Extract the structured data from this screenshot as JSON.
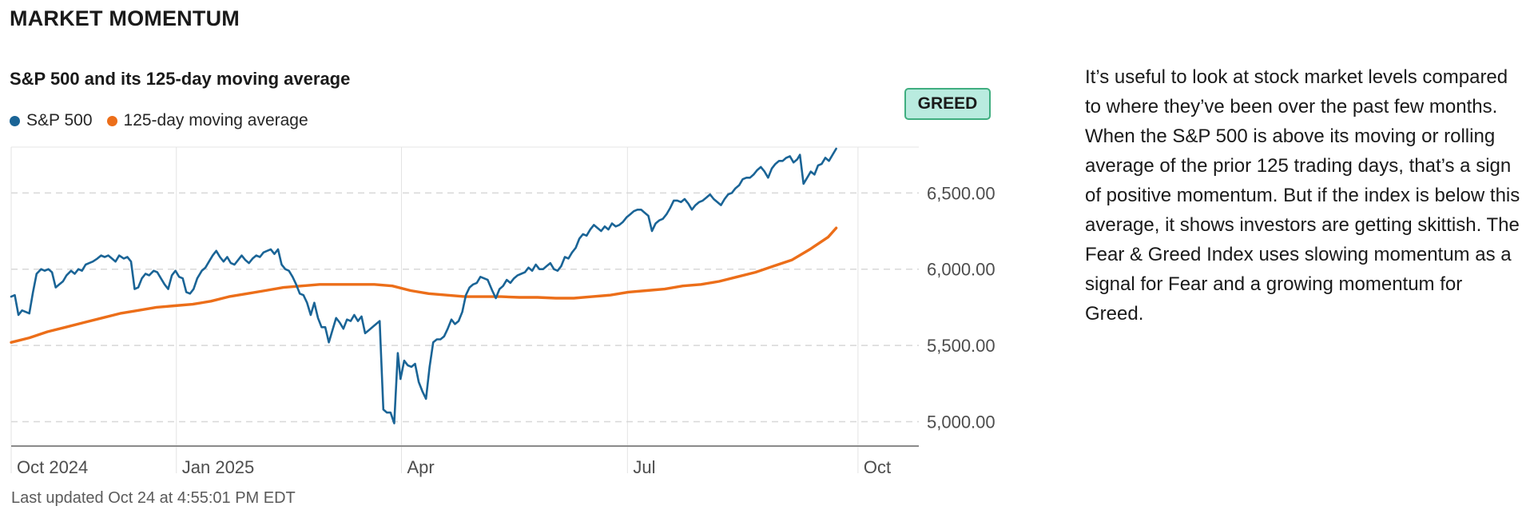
{
  "section_title": "MARKET MOMENTUM",
  "badge": "GREED",
  "description": "It’s useful to look at stock market levels compared to where they’ve been over the past few months. When the S&P 500 is above its moving or rolling average of the prior 125 trading days, that’s a sign of positive momentum. But if the index is below this average, it shows investors are getting skittish. The Fear & Greed Index uses slowing momentum as a signal for Fear and a growing momentum for Greed.",
  "footer": "Last updated Oct 24 at 4:55:01 PM EDT",
  "colors": {
    "sp500": "#1a6496",
    "ma125": "#ec6e19",
    "badge_bg": "#b9ebdf",
    "badge_border": "#3fae7f"
  },
  "chart_data": {
    "type": "line",
    "title": "S&P 500 and its 125-day moving average",
    "x_ticks": [
      {
        "label": "Oct 2024",
        "t": 0
      },
      {
        "label": "Jan 2025",
        "t": 0.182
      },
      {
        "label": "Apr",
        "t": 0.43
      },
      {
        "label": "Jul",
        "t": 0.679
      },
      {
        "label": "Oct",
        "t": 0.933
      }
    ],
    "y_ticks": [
      5000,
      5500,
      6000,
      6500
    ],
    "y_tick_labels": [
      "5,000.00",
      "5,500.00",
      "6,000.00",
      "6,500.00"
    ],
    "ylim": [
      4830,
      6790
    ],
    "grid": true,
    "legend": "top-left",
    "series": [
      {
        "name": "S&P 500",
        "points": [
          [
            0.0,
            5820
          ],
          [
            0.004,
            5830
          ],
          [
            0.008,
            5700
          ],
          [
            0.012,
            5730
          ],
          [
            0.016,
            5720
          ],
          [
            0.02,
            5710
          ],
          [
            0.024,
            5850
          ],
          [
            0.028,
            5970
          ],
          [
            0.033,
            6000
          ],
          [
            0.037,
            5990
          ],
          [
            0.041,
            6000
          ],
          [
            0.045,
            5980
          ],
          [
            0.049,
            5880
          ],
          [
            0.053,
            5900
          ],
          [
            0.057,
            5920
          ],
          [
            0.061,
            5960
          ],
          [
            0.066,
            5990
          ],
          [
            0.07,
            5970
          ],
          [
            0.074,
            6000
          ],
          [
            0.078,
            5990
          ],
          [
            0.082,
            6030
          ],
          [
            0.086,
            6040
          ],
          [
            0.09,
            6050
          ],
          [
            0.095,
            6070
          ],
          [
            0.099,
            6090
          ],
          [
            0.103,
            6080
          ],
          [
            0.107,
            6090
          ],
          [
            0.111,
            6070
          ],
          [
            0.115,
            6050
          ],
          [
            0.119,
            6090
          ],
          [
            0.124,
            6070
          ],
          [
            0.128,
            6080
          ],
          [
            0.132,
            6050
          ],
          [
            0.136,
            5870
          ],
          [
            0.14,
            5880
          ],
          [
            0.144,
            5940
          ],
          [
            0.148,
            5970
          ],
          [
            0.152,
            5960
          ],
          [
            0.157,
            5990
          ],
          [
            0.161,
            5980
          ],
          [
            0.165,
            5940
          ],
          [
            0.169,
            5900
          ],
          [
            0.173,
            5870
          ],
          [
            0.177,
            5960
          ],
          [
            0.181,
            5990
          ],
          [
            0.185,
            5950
          ],
          [
            0.189,
            5940
          ],
          [
            0.193,
            5850
          ],
          [
            0.197,
            5840
          ],
          [
            0.201,
            5870
          ],
          [
            0.205,
            5940
          ],
          [
            0.21,
            5990
          ],
          [
            0.214,
            6010
          ],
          [
            0.218,
            6050
          ],
          [
            0.222,
            6090
          ],
          [
            0.226,
            6120
          ],
          [
            0.23,
            6080
          ],
          [
            0.234,
            6050
          ],
          [
            0.238,
            6080
          ],
          [
            0.242,
            6040
          ],
          [
            0.246,
            6030
          ],
          [
            0.25,
            6060
          ],
          [
            0.254,
            6090
          ],
          [
            0.258,
            6060
          ],
          [
            0.262,
            6040
          ],
          [
            0.266,
            6070
          ],
          [
            0.27,
            6090
          ],
          [
            0.274,
            6080
          ],
          [
            0.278,
            6110
          ],
          [
            0.282,
            6120
          ],
          [
            0.286,
            6130
          ],
          [
            0.29,
            6100
          ],
          [
            0.294,
            6130
          ],
          [
            0.298,
            6030
          ],
          [
            0.302,
            6000
          ],
          [
            0.306,
            5990
          ],
          [
            0.31,
            5950
          ],
          [
            0.314,
            5900
          ],
          [
            0.318,
            5840
          ],
          [
            0.322,
            5830
          ],
          [
            0.326,
            5780
          ],
          [
            0.33,
            5700
          ],
          [
            0.334,
            5780
          ],
          [
            0.338,
            5680
          ],
          [
            0.342,
            5620
          ],
          [
            0.346,
            5620
          ],
          [
            0.35,
            5520
          ],
          [
            0.354,
            5600
          ],
          [
            0.358,
            5680
          ],
          [
            0.362,
            5650
          ],
          [
            0.366,
            5610
          ],
          [
            0.37,
            5670
          ],
          [
            0.374,
            5660
          ],
          [
            0.378,
            5700
          ],
          [
            0.382,
            5660
          ],
          [
            0.386,
            5690
          ],
          [
            0.39,
            5580
          ],
          [
            0.394,
            5600
          ],
          [
            0.398,
            5620
          ],
          [
            0.402,
            5640
          ],
          [
            0.406,
            5660
          ],
          [
            0.41,
            5080
          ],
          [
            0.414,
            5060
          ],
          [
            0.418,
            5060
          ],
          [
            0.422,
            4990
          ],
          [
            0.426,
            5450
          ],
          [
            0.429,
            5280
          ],
          [
            0.433,
            5400
          ],
          [
            0.437,
            5370
          ],
          [
            0.441,
            5360
          ],
          [
            0.445,
            5380
          ],
          [
            0.449,
            5260
          ],
          [
            0.453,
            5200
          ],
          [
            0.457,
            5150
          ],
          [
            0.461,
            5360
          ],
          [
            0.465,
            5520
          ],
          [
            0.469,
            5540
          ],
          [
            0.473,
            5540
          ],
          [
            0.477,
            5560
          ],
          [
            0.481,
            5610
          ],
          [
            0.485,
            5670
          ],
          [
            0.489,
            5640
          ],
          [
            0.493,
            5660
          ],
          [
            0.497,
            5720
          ],
          [
            0.501,
            5830
          ],
          [
            0.505,
            5880
          ],
          [
            0.509,
            5900
          ],
          [
            0.513,
            5910
          ],
          [
            0.517,
            5950
          ],
          [
            0.521,
            5940
          ],
          [
            0.525,
            5930
          ],
          [
            0.53,
            5860
          ],
          [
            0.534,
            5810
          ],
          [
            0.538,
            5870
          ],
          [
            0.542,
            5890
          ],
          [
            0.546,
            5930
          ],
          [
            0.55,
            5910
          ],
          [
            0.554,
            5940
          ],
          [
            0.558,
            5960
          ],
          [
            0.562,
            5970
          ],
          [
            0.566,
            5980
          ],
          [
            0.57,
            6010
          ],
          [
            0.574,
            5990
          ],
          [
            0.578,
            6030
          ],
          [
            0.582,
            6000
          ],
          [
            0.586,
            6000
          ],
          [
            0.59,
            6020
          ],
          [
            0.594,
            6040
          ],
          [
            0.598,
            6000
          ],
          [
            0.602,
            5990
          ],
          [
            0.606,
            6020
          ],
          [
            0.61,
            6080
          ],
          [
            0.614,
            6070
          ],
          [
            0.618,
            6110
          ],
          [
            0.622,
            6140
          ],
          [
            0.626,
            6200
          ],
          [
            0.63,
            6230
          ],
          [
            0.634,
            6220
          ],
          [
            0.638,
            6260
          ],
          [
            0.642,
            6290
          ],
          [
            0.646,
            6270
          ],
          [
            0.65,
            6250
          ],
          [
            0.654,
            6280
          ],
          [
            0.658,
            6260
          ],
          [
            0.662,
            6300
          ],
          [
            0.666,
            6280
          ],
          [
            0.67,
            6290
          ],
          [
            0.674,
            6310
          ],
          [
            0.678,
            6340
          ],
          [
            0.682,
            6360
          ],
          [
            0.686,
            6380
          ],
          [
            0.69,
            6390
          ],
          [
            0.694,
            6390
          ],
          [
            0.698,
            6370
          ],
          [
            0.702,
            6350
          ],
          [
            0.706,
            6250
          ],
          [
            0.71,
            6300
          ],
          [
            0.714,
            6320
          ],
          [
            0.718,
            6330
          ],
          [
            0.722,
            6360
          ],
          [
            0.726,
            6400
          ],
          [
            0.73,
            6450
          ],
          [
            0.734,
            6450
          ],
          [
            0.738,
            6440
          ],
          [
            0.742,
            6460
          ],
          [
            0.746,
            6430
          ],
          [
            0.75,
            6390
          ],
          [
            0.754,
            6420
          ],
          [
            0.758,
            6440
          ],
          [
            0.762,
            6450
          ],
          [
            0.766,
            6470
          ],
          [
            0.77,
            6490
          ],
          [
            0.774,
            6460
          ],
          [
            0.778,
            6440
          ],
          [
            0.782,
            6420
          ],
          [
            0.786,
            6460
          ],
          [
            0.79,
            6490
          ],
          [
            0.794,
            6500
          ],
          [
            0.798,
            6530
          ],
          [
            0.802,
            6550
          ],
          [
            0.806,
            6590
          ],
          [
            0.81,
            6600
          ],
          [
            0.814,
            6600
          ],
          [
            0.818,
            6620
          ],
          [
            0.822,
            6650
          ],
          [
            0.826,
            6670
          ],
          [
            0.83,
            6640
          ],
          [
            0.834,
            6600
          ],
          [
            0.838,
            6660
          ],
          [
            0.842,
            6690
          ],
          [
            0.846,
            6710
          ],
          [
            0.85,
            6710
          ],
          [
            0.854,
            6730
          ],
          [
            0.858,
            6740
          ],
          [
            0.862,
            6700
          ],
          [
            0.866,
            6720
          ],
          [
            0.869,
            6750
          ],
          [
            0.873,
            6560
          ],
          [
            0.877,
            6600
          ],
          [
            0.881,
            6640
          ],
          [
            0.885,
            6620
          ],
          [
            0.889,
            6680
          ],
          [
            0.893,
            6690
          ],
          [
            0.897,
            6730
          ],
          [
            0.901,
            6710
          ],
          [
            0.905,
            6750
          ],
          [
            0.909,
            6790
          ]
        ]
      },
      {
        "name": "125-day moving average",
        "points": [
          [
            0.0,
            5520
          ],
          [
            0.02,
            5550
          ],
          [
            0.04,
            5590
          ],
          [
            0.06,
            5620
          ],
          [
            0.08,
            5650
          ],
          [
            0.1,
            5680
          ],
          [
            0.12,
            5710
          ],
          [
            0.14,
            5730
          ],
          [
            0.16,
            5750
          ],
          [
            0.18,
            5760
          ],
          [
            0.2,
            5770
          ],
          [
            0.22,
            5790
          ],
          [
            0.24,
            5820
          ],
          [
            0.26,
            5840
          ],
          [
            0.28,
            5860
          ],
          [
            0.3,
            5880
          ],
          [
            0.32,
            5890
          ],
          [
            0.34,
            5900
          ],
          [
            0.36,
            5900
          ],
          [
            0.38,
            5900
          ],
          [
            0.4,
            5900
          ],
          [
            0.42,
            5890
          ],
          [
            0.44,
            5860
          ],
          [
            0.46,
            5840
          ],
          [
            0.48,
            5830
          ],
          [
            0.5,
            5820
          ],
          [
            0.52,
            5820
          ],
          [
            0.54,
            5820
          ],
          [
            0.56,
            5815
          ],
          [
            0.58,
            5815
          ],
          [
            0.6,
            5810
          ],
          [
            0.62,
            5810
          ],
          [
            0.64,
            5820
          ],
          [
            0.66,
            5830
          ],
          [
            0.68,
            5850
          ],
          [
            0.7,
            5860
          ],
          [
            0.72,
            5870
          ],
          [
            0.74,
            5890
          ],
          [
            0.76,
            5900
          ],
          [
            0.78,
            5920
          ],
          [
            0.8,
            5950
          ],
          [
            0.82,
            5980
          ],
          [
            0.84,
            6020
          ],
          [
            0.86,
            6060
          ],
          [
            0.88,
            6130
          ],
          [
            0.89,
            6170
          ],
          [
            0.9,
            6210
          ],
          [
            0.909,
            6270
          ]
        ]
      }
    ]
  }
}
